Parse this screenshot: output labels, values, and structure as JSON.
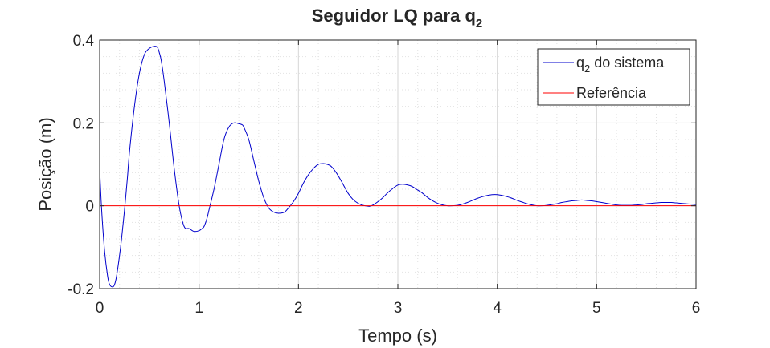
{
  "chart_data": {
    "type": "line",
    "title": {
      "text": "Seguidor LQ para q",
      "subscript": "2"
    },
    "xlabel": "Tempo (s)",
    "ylabel": "Posição (m)",
    "xlim": [
      0,
      6
    ],
    "ylim": [
      -0.2,
      0.4
    ],
    "x_ticks": [
      0,
      1,
      2,
      3,
      4,
      5,
      6
    ],
    "x_tick_labels": [
      "0",
      "1",
      "2",
      "3",
      "4",
      "5",
      "6"
    ],
    "y_ticks": [
      -0.2,
      0,
      0.2,
      0.4
    ],
    "y_tick_labels": [
      "-0.2",
      "0",
      "0.2",
      "0.4"
    ],
    "grid": true,
    "minor_grid": true,
    "legend_position": "top-right",
    "series": [
      {
        "name": "q",
        "name_subscript": "2",
        "name_suffix": " do sistema",
        "color": "#0000cc",
        "x": [
          0.0,
          0.02,
          0.05,
          0.08,
          0.1,
          0.13,
          0.15,
          0.17,
          0.2,
          0.22,
          0.25,
          0.28,
          0.3,
          0.35,
          0.4,
          0.45,
          0.5,
          0.55,
          0.58,
          0.6,
          0.62,
          0.65,
          0.7,
          0.75,
          0.8,
          0.85,
          0.9,
          0.95,
          1.0,
          1.03,
          1.05,
          1.08,
          1.1,
          1.15,
          1.2,
          1.25,
          1.3,
          1.35,
          1.4,
          1.43,
          1.45,
          1.5,
          1.55,
          1.6,
          1.65,
          1.7,
          1.75,
          1.8,
          1.86,
          1.9,
          1.95,
          2.0,
          2.05,
          2.1,
          2.15,
          2.2,
          2.25,
          2.29,
          2.33,
          2.38,
          2.43,
          2.5,
          2.55,
          2.6,
          2.65,
          2.7,
          2.72,
          2.75,
          2.8,
          2.85,
          2.9,
          2.95,
          3.0,
          3.05,
          3.1,
          3.14,
          3.2,
          3.25,
          3.3,
          3.35,
          3.4,
          3.45,
          3.5,
          3.55,
          3.6,
          3.65,
          3.7,
          3.75,
          3.8,
          3.85,
          3.9,
          3.95,
          4.0,
          4.05,
          4.1,
          4.15,
          4.2,
          4.25,
          4.3,
          4.35,
          4.4,
          4.45,
          4.5,
          4.55,
          4.6,
          4.65,
          4.7,
          4.75,
          4.8,
          4.85,
          4.9,
          4.95,
          5.0,
          5.05,
          5.1,
          5.15,
          5.2,
          5.25,
          5.3,
          5.35,
          5.4,
          5.45,
          5.5,
          5.55,
          5.6,
          5.65,
          5.7,
          5.75,
          5.8,
          5.85,
          5.9,
          5.95,
          6.0
        ],
        "y": [
          0.09,
          -0.01,
          -0.11,
          -0.17,
          -0.19,
          -0.196,
          -0.19,
          -0.17,
          -0.12,
          -0.08,
          -0.01,
          0.07,
          0.13,
          0.24,
          0.32,
          0.365,
          0.38,
          0.385,
          0.383,
          0.37,
          0.35,
          0.3,
          0.2,
          0.09,
          -0.0,
          -0.05,
          -0.055,
          -0.062,
          -0.06,
          -0.055,
          -0.05,
          -0.03,
          -0.01,
          0.04,
          0.1,
          0.16,
          0.19,
          0.2,
          0.198,
          0.196,
          0.19,
          0.16,
          0.11,
          0.06,
          0.02,
          -0.005,
          -0.015,
          -0.018,
          -0.015,
          -0.005,
          0.01,
          0.03,
          0.055,
          0.075,
          0.09,
          0.1,
          0.102,
          0.1,
          0.095,
          0.08,
          0.06,
          0.03,
          0.015,
          0.006,
          0.001,
          -0.001,
          -0.001,
          0.002,
          0.01,
          0.02,
          0.032,
          0.042,
          0.05,
          0.052,
          0.05,
          0.047,
          0.038,
          0.03,
          0.02,
          0.012,
          0.006,
          0.002,
          0.0,
          0.0,
          0.001,
          0.004,
          0.008,
          0.013,
          0.018,
          0.022,
          0.025,
          0.027,
          0.027,
          0.025,
          0.022,
          0.018,
          0.013,
          0.009,
          0.005,
          0.002,
          0.0,
          0.0,
          0.001,
          0.003,
          0.005,
          0.008,
          0.01,
          0.012,
          0.013,
          0.014,
          0.013,
          0.012,
          0.01,
          0.008,
          0.006,
          0.004,
          0.002,
          0.001,
          0.001,
          0.001,
          0.002,
          0.003,
          0.005,
          0.006,
          0.007,
          0.008,
          0.008,
          0.008,
          0.007,
          0.006,
          0.005,
          0.004,
          0.003
        ]
      },
      {
        "name": "Referência",
        "color": "#ff0000",
        "x": [
          0,
          6
        ],
        "y": [
          0,
          0
        ]
      }
    ]
  },
  "colors": {
    "axis": "#262626",
    "grid": "#dcdcdc",
    "background": "#ffffff"
  }
}
